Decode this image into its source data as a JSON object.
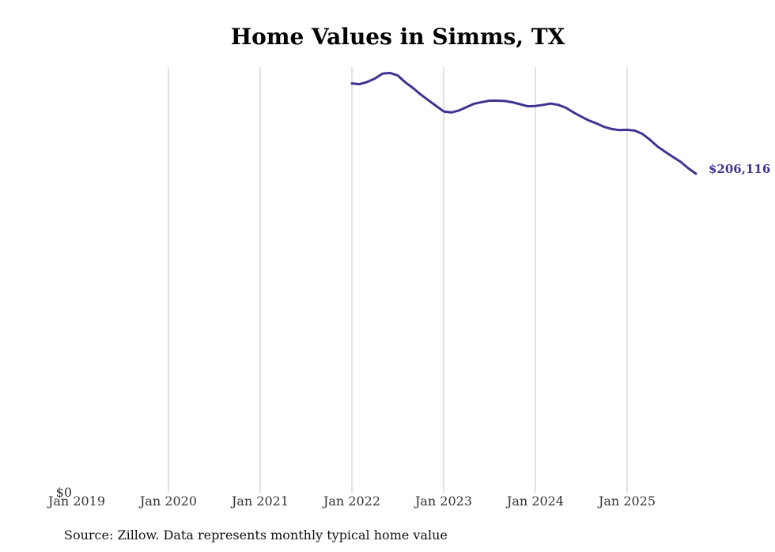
{
  "chart_data": {
    "type": "line",
    "title": "Home Values in Simms, TX",
    "xlabel": "",
    "ylabel": "",
    "x_tick_labels": [
      "Jan 2019",
      "Jan 2020",
      "Jan 2021",
      "Jan 2022",
      "Jan 2023",
      "Jan 2024",
      "Jan 2025"
    ],
    "y_tick_labels": [
      "$0"
    ],
    "ylim": [
      0,
      275000
    ],
    "grid": "vertical",
    "line_color": "#3d3591",
    "end_label": "$206,116",
    "series": [
      {
        "x": [
          "2022-01",
          "2022-02",
          "2022-03",
          "2022-04",
          "2022-05",
          "2022-06",
          "2022-07",
          "2022-08",
          "2022-09",
          "2022-10",
          "2022-11",
          "2022-12",
          "2023-01",
          "2023-02",
          "2023-03",
          "2023-04",
          "2023-05",
          "2023-06",
          "2023-07",
          "2023-08",
          "2023-09",
          "2023-10",
          "2023-11",
          "2023-12",
          "2024-01",
          "2024-02",
          "2024-03",
          "2024-04",
          "2024-05",
          "2024-06",
          "2024-07",
          "2024-08",
          "2024-09",
          "2024-10",
          "2024-11",
          "2024-12",
          "2025-01",
          "2025-02",
          "2025-03",
          "2025-04",
          "2025-05",
          "2025-06",
          "2025-07",
          "2025-08",
          "2025-09",
          "2025-10"
        ],
        "y": [
          264500,
          264000,
          265400,
          267600,
          270800,
          271200,
          269600,
          265100,
          261500,
          257300,
          253600,
          250000,
          246400,
          245700,
          247000,
          249200,
          251400,
          252400,
          253300,
          253300,
          253100,
          252300,
          251000,
          249700,
          249900,
          250600,
          251500,
          250600,
          248700,
          245700,
          243000,
          240500,
          238600,
          236400,
          235000,
          234300,
          234500,
          234000,
          231900,
          228000,
          223600,
          220200,
          217000,
          213800,
          209700,
          206100
        ]
      }
    ]
  },
  "source": "Source: Zillow. Data represents monthly typical home value"
}
